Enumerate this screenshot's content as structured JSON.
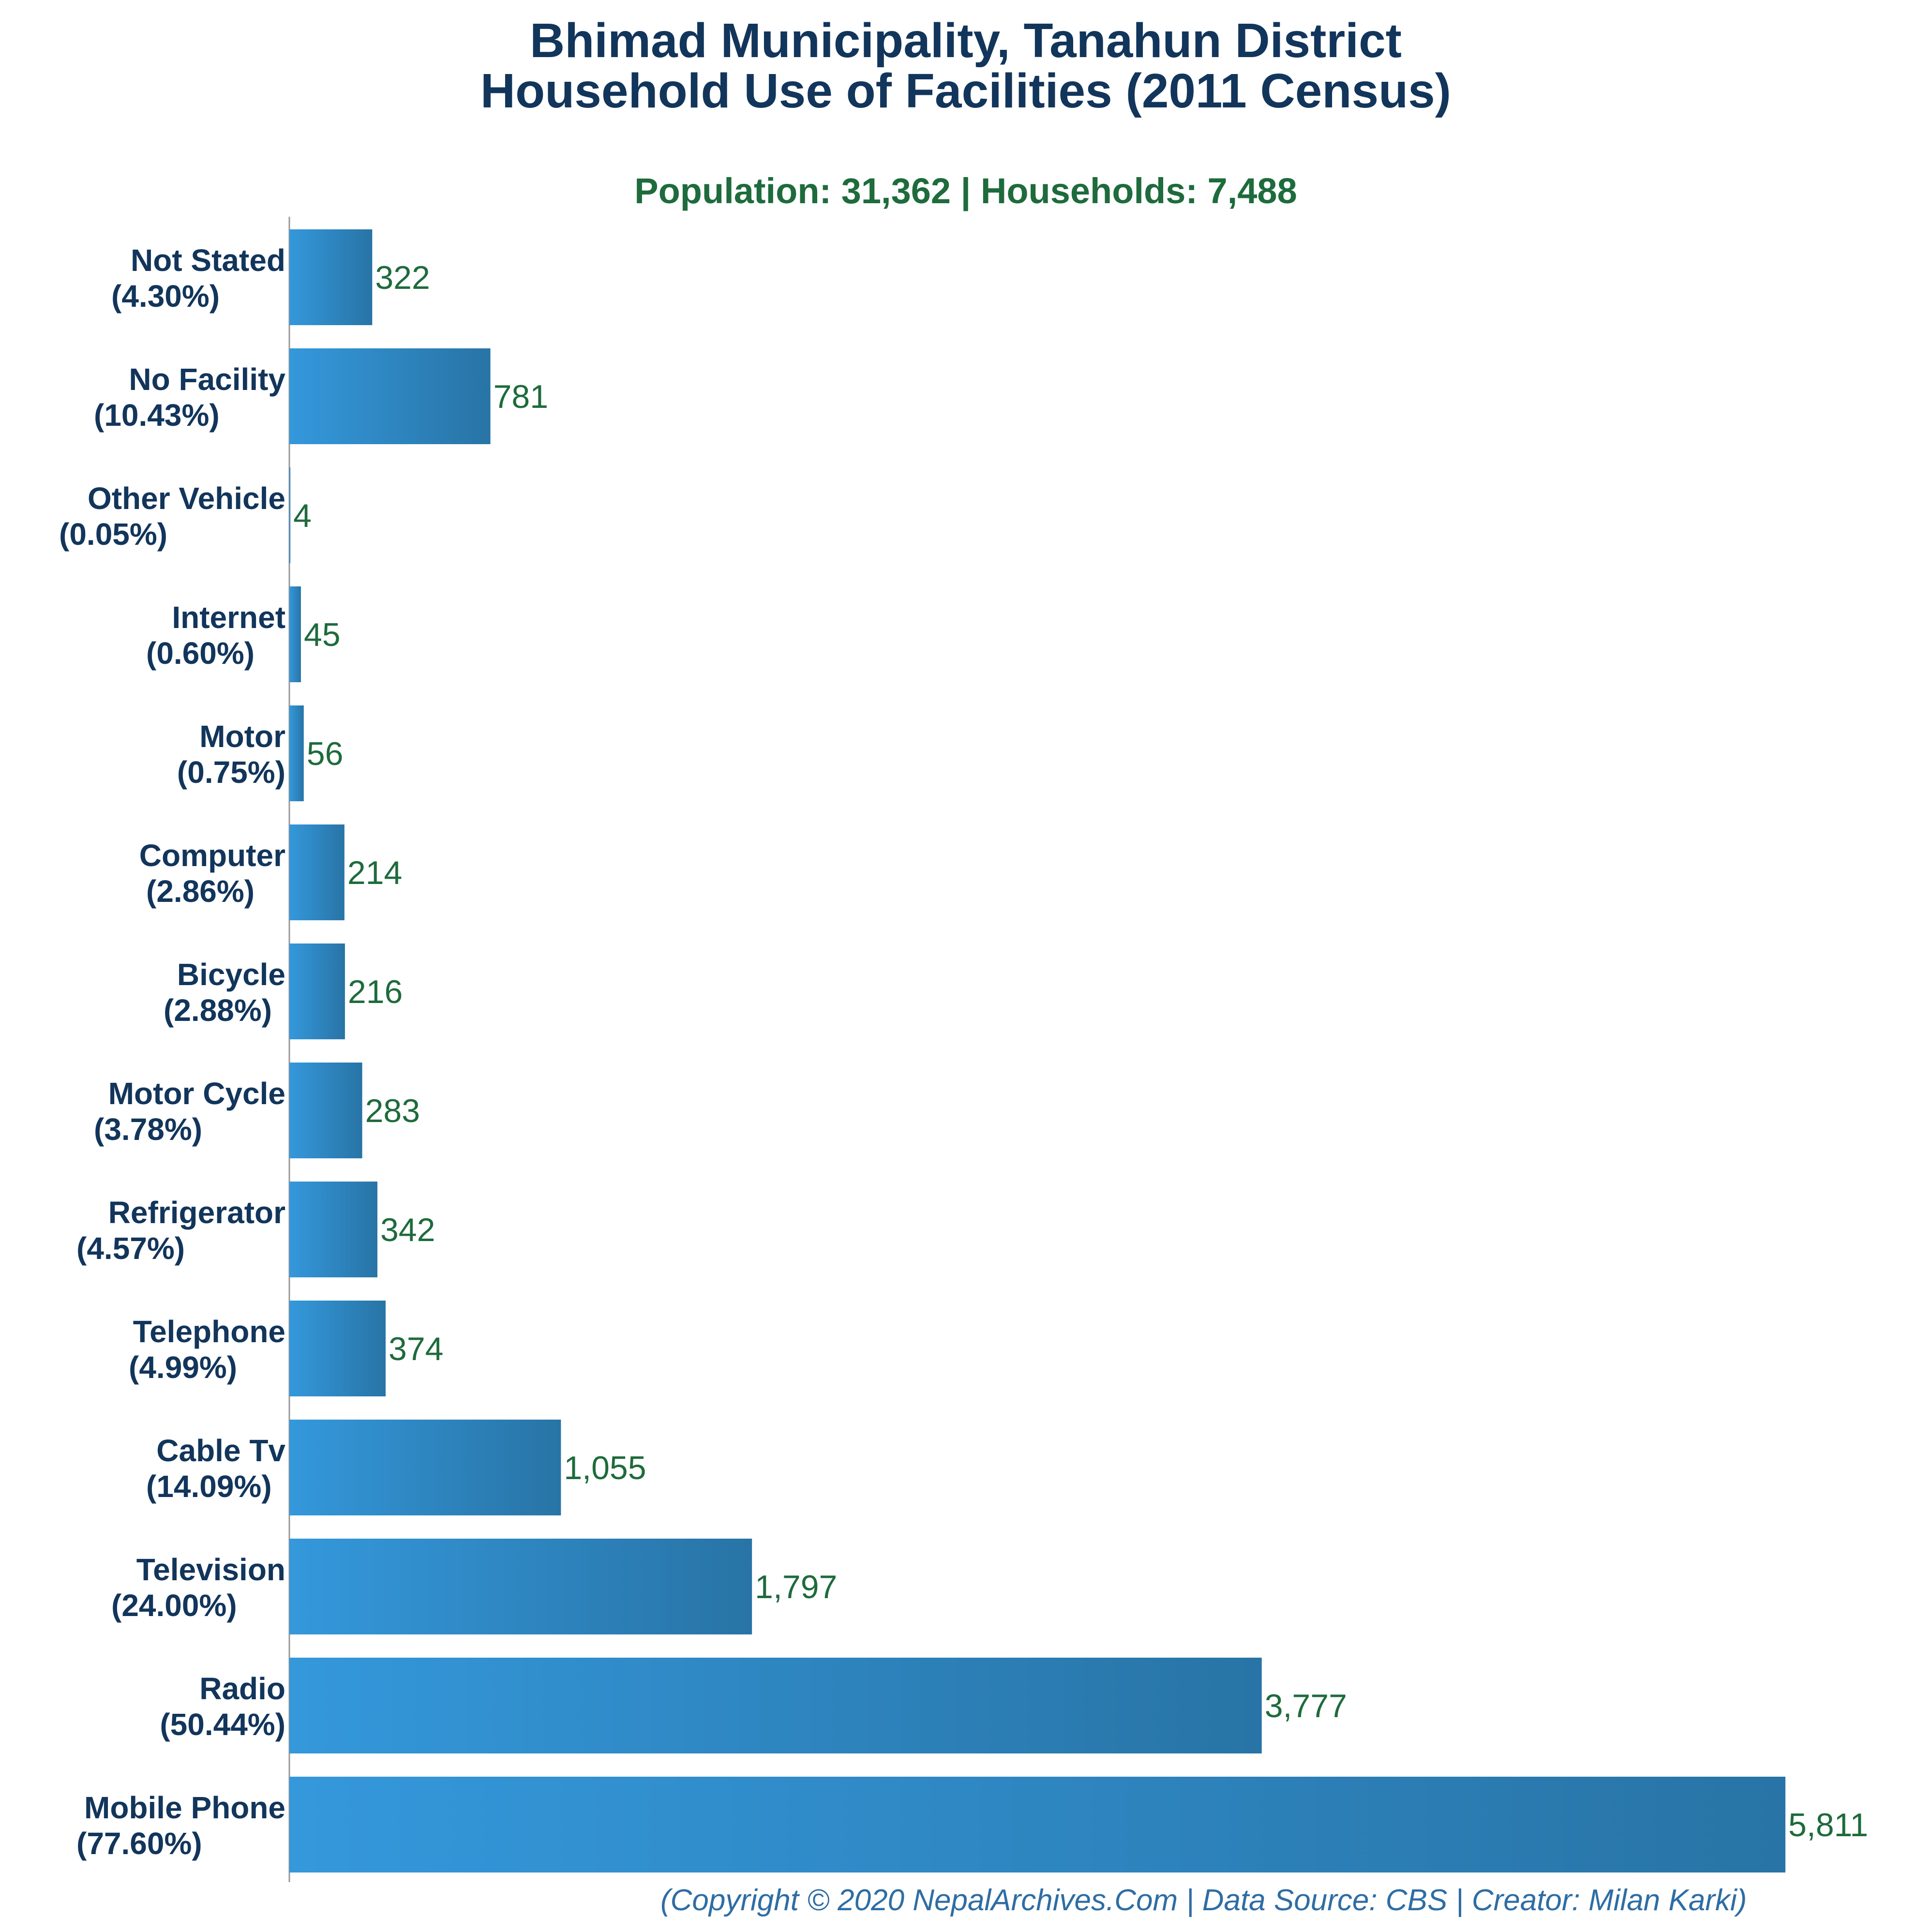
{
  "chart_data": {
    "type": "bar",
    "orientation": "horizontal",
    "title_lines": [
      "Bhimad Municipality, Tanahun District",
      "Household Use of Facilities (2011 Census)"
    ],
    "subtitle": "Population: 31,362 | Households: 7,488",
    "categories": [
      {
        "name": "Not Stated",
        "pct": "(4.30%)"
      },
      {
        "name": "No Facility",
        "pct": "(10.43%)"
      },
      {
        "name": "Other Vehicle",
        "pct": "(0.05%)"
      },
      {
        "name": "Internet",
        "pct": "(0.60%)"
      },
      {
        "name": "Motor",
        "pct": "(0.75%)"
      },
      {
        "name": "Computer",
        "pct": "(2.86%)"
      },
      {
        "name": "Bicycle",
        "pct": "(2.88%)"
      },
      {
        "name": "Motor Cycle",
        "pct": "(3.78%)"
      },
      {
        "name": "Refrigerator",
        "pct": "(4.57%)"
      },
      {
        "name": "Telephone",
        "pct": "(4.99%)"
      },
      {
        "name": "Cable Tv",
        "pct": "(14.09%)"
      },
      {
        "name": "Television",
        "pct": "(24.00%)"
      },
      {
        "name": "Radio",
        "pct": "(50.44%)"
      },
      {
        "name": "Mobile Phone",
        "pct": "(77.60%)"
      }
    ],
    "values": [
      322,
      781,
      4,
      45,
      56,
      214,
      216,
      283,
      342,
      374,
      1055,
      1797,
      3777,
      5811
    ],
    "value_labels": [
      "322",
      "781",
      "4",
      "45",
      "56",
      "214",
      "216",
      "283",
      "342",
      "374",
      "1,055",
      "1,797",
      "3,777",
      "5,811"
    ],
    "xlim": [
      0,
      5811
    ],
    "grid": false,
    "legend": "none",
    "footer": "(Copyright © 2020 NepalArchives.Com | Data Source: CBS | Creator: Milan Karki)"
  },
  "colors": {
    "title": "#12355b",
    "subtitle": "#1e6b3c",
    "value_label": "#1e6b3c",
    "bar_start": "#3498db",
    "bar_end": "#2874a6",
    "footer": "#2e6da4",
    "axis": "#999999"
  }
}
